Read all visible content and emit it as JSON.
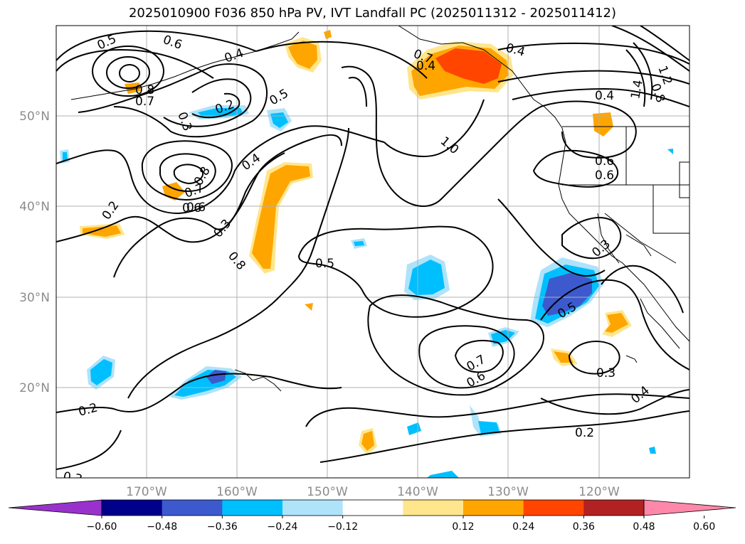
{
  "title": "2025010900 F036 850 hPa PV, IVT Landfall PC (2025011312 - 2025011412)",
  "axes": {
    "lon_ticks": [
      "170°W",
      "160°W",
      "150°W",
      "140°W",
      "130°W",
      "120°W"
    ],
    "lat_ticks": [
      "50°N",
      "40°N",
      "30°N",
      "20°N"
    ],
    "grid": true
  },
  "colorbar": {
    "orientation": "horizontal",
    "extend": "both",
    "ticks": [
      "−0.60",
      "−0.48",
      "−0.36",
      "−0.24",
      "−0.12",
      "0.12",
      "0.24",
      "0.36",
      "0.48",
      "0.60"
    ],
    "colors": [
      "#9932cc",
      "#00008b",
      "#3c5acd",
      "#00bfff",
      "#aee3fa",
      "#ffffff",
      "#ffe68c",
      "#ffa500",
      "#ff4500",
      "#b22222",
      "#ff88aa"
    ]
  },
  "contour_labels": [
    "0.5",
    "0.6",
    "0.8",
    "0.7",
    "0.4",
    "0.3",
    "0.2",
    "0.5",
    "0.8",
    "0.6",
    "0.7",
    "0.6",
    "0.4",
    "0.3",
    "0.2",
    "0.8",
    "0.7",
    "0.4",
    "0.4",
    "1.0",
    "1.4",
    "1.2",
    "0.8",
    "0.6",
    "0.4",
    "0.6",
    "0.3",
    "0.5",
    "0.7",
    "0.6",
    "0.3",
    "0.4",
    "0.2",
    "0.2",
    "0.3",
    "0.5"
  ]
}
